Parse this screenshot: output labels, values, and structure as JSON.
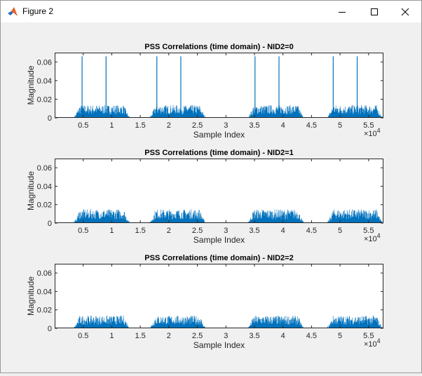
{
  "window": {
    "title": "Figure 2",
    "icons": {
      "app": "matlab-logo-icon",
      "minimize": "minimize-icon",
      "maximize": "maximize-icon",
      "close": "close-icon"
    }
  },
  "colors": {
    "line": "#0072bd",
    "axes_bg": "#ffffff",
    "figure_bg": "#f0f0f0"
  },
  "chart_data": [
    {
      "type": "line",
      "title": "PSS Correlations (time domain) - NID2=0",
      "xlabel": "Sample Index",
      "ylabel": "Magnitude",
      "xlim": [
        0,
        57600
      ],
      "ylim": [
        0,
        0.07
      ],
      "x_ticks": [
        5000,
        10000,
        15000,
        20000,
        25000,
        30000,
        35000,
        40000,
        45000,
        50000,
        55000
      ],
      "x_tick_labels": [
        "0.5",
        "1",
        "1.5",
        "2",
        "2.5",
        "3",
        "3.5",
        "4",
        "4.5",
        "5",
        "5.5"
      ],
      "x_exponent_label": "×10",
      "x_exponent_power": "4",
      "y_ticks": [
        0,
        0.02,
        0.04,
        0.06
      ],
      "y_tick_labels": [
        "0",
        "0.02",
        "0.04",
        "0.06"
      ],
      "bursts": [
        {
          "x_start": 3400,
          "x_end": 13100,
          "level": 0.011
        },
        {
          "x_start": 16700,
          "x_end": 26400,
          "level": 0.011
        },
        {
          "x_start": 33900,
          "x_end": 43600,
          "level": 0.011
        },
        {
          "x_start": 47800,
          "x_end": 57400,
          "level": 0.011
        }
      ],
      "peaks": [
        {
          "x": 4800,
          "y": 0.066
        },
        {
          "x": 9000,
          "y": 0.066
        },
        {
          "x": 17900,
          "y": 0.066
        },
        {
          "x": 22100,
          "y": 0.066
        },
        {
          "x": 35100,
          "y": 0.066
        },
        {
          "x": 39300,
          "y": 0.066
        },
        {
          "x": 48800,
          "y": 0.066
        },
        {
          "x": 53000,
          "y": 0.066
        }
      ]
    },
    {
      "type": "line",
      "title": "PSS Correlations (time domain) - NID2=1",
      "xlabel": "Sample Index",
      "ylabel": "Magnitude",
      "xlim": [
        0,
        57600
      ],
      "ylim": [
        0,
        0.07
      ],
      "x_ticks": [
        5000,
        10000,
        15000,
        20000,
        25000,
        30000,
        35000,
        40000,
        45000,
        50000,
        55000
      ],
      "x_tick_labels": [
        "0.5",
        "1",
        "1.5",
        "2",
        "2.5",
        "3",
        "3.5",
        "4",
        "4.5",
        "5",
        "5.5"
      ],
      "x_exponent_label": "×10",
      "x_exponent_power": "4",
      "y_ticks": [
        0,
        0.02,
        0.04,
        0.06
      ],
      "y_tick_labels": [
        "0",
        "0.02",
        "0.04",
        "0.06"
      ],
      "bursts": [
        {
          "x_start": 3400,
          "x_end": 13100,
          "level": 0.012
        },
        {
          "x_start": 16700,
          "x_end": 26400,
          "level": 0.012
        },
        {
          "x_start": 33900,
          "x_end": 43600,
          "level": 0.012
        },
        {
          "x_start": 47800,
          "x_end": 57400,
          "level": 0.012
        }
      ],
      "peaks": []
    },
    {
      "type": "line",
      "title": "PSS Correlations (time domain) - NID2=2",
      "xlabel": "Sample Index",
      "ylabel": "Magnitude",
      "xlim": [
        0,
        57600
      ],
      "ylim": [
        0,
        0.07
      ],
      "x_ticks": [
        5000,
        10000,
        15000,
        20000,
        25000,
        30000,
        35000,
        40000,
        45000,
        50000,
        55000
      ],
      "x_tick_labels": [
        "0.5",
        "1",
        "1.5",
        "2",
        "2.5",
        "3",
        "3.5",
        "4",
        "4.5",
        "5",
        "5.5"
      ],
      "x_exponent_label": "×10",
      "x_exponent_power": "4",
      "y_ticks": [
        0,
        0.02,
        0.04,
        0.06
      ],
      "y_tick_labels": [
        "0",
        "0.02",
        "0.04",
        "0.06"
      ],
      "bursts": [
        {
          "x_start": 3400,
          "x_end": 13100,
          "level": 0.011
        },
        {
          "x_start": 16700,
          "x_end": 26400,
          "level": 0.011
        },
        {
          "x_start": 33900,
          "x_end": 43600,
          "level": 0.011
        },
        {
          "x_start": 47800,
          "x_end": 57400,
          "level": 0.011
        }
      ],
      "peaks": []
    }
  ]
}
